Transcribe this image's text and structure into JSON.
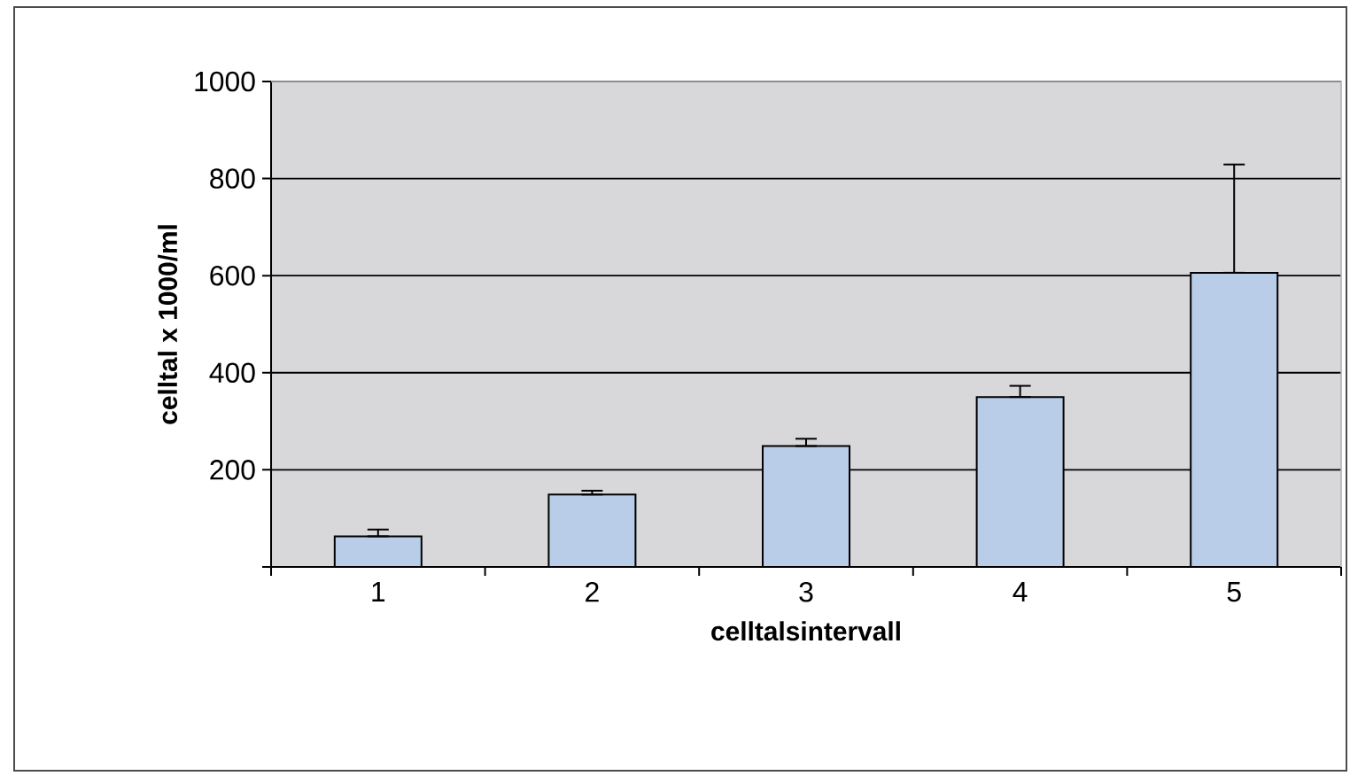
{
  "chart_data": {
    "type": "bar",
    "xlabel": "celltalsintervall",
    "ylabel": "celltal x 1000/ml",
    "categories": [
      "1",
      "2",
      "3",
      "4",
      "5"
    ],
    "values": [
      63,
      149,
      249,
      350,
      606
    ],
    "errors": [
      [
        63,
        77
      ],
      [
        149,
        157
      ],
      [
        249,
        264
      ],
      [
        350,
        373
      ],
      [
        606,
        829
      ]
    ],
    "color": "#b9cde8",
    "ylim": [
      0,
      1000
    ],
    "yticks": [
      {
        "value": 0,
        "label": null
      },
      200,
      400,
      600,
      800,
      1000
    ],
    "grid": "y"
  }
}
